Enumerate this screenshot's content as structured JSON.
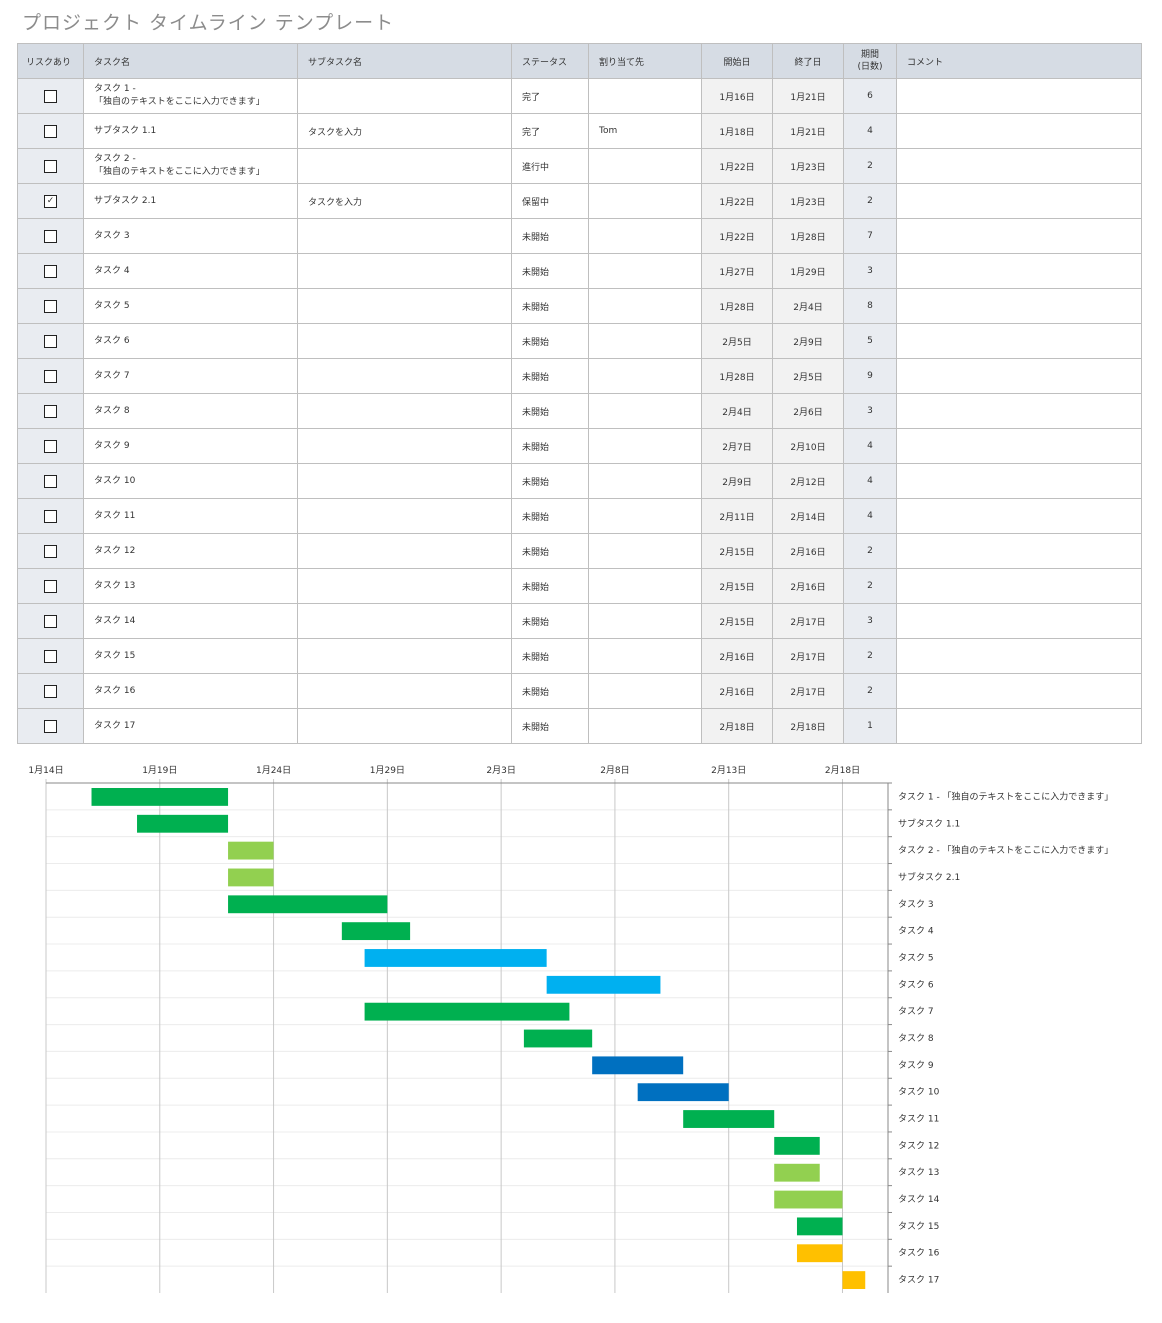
{
  "title": "プロジェクト タイムライン テンプレート",
  "table": {
    "headers": [
      "リスクあり",
      "タスク名",
      "サブタスク名",
      "ステータス",
      "割り当て先",
      "開始日",
      "終了日",
      "期間\n(日数)",
      "コメント"
    ],
    "rows": [
      {
        "risk": false,
        "task": "タスク 1 -\n「独自のテキストをここに入力できます」",
        "subtask": "",
        "status": "完了",
        "assignee": "",
        "start": "1月16日",
        "end": "1月21日",
        "duration": "6",
        "comment": ""
      },
      {
        "risk": false,
        "task": "サブタスク 1.1",
        "subtask": "タスクを入力",
        "status": "完了",
        "assignee": "Tom",
        "start": "1月18日",
        "end": "1月21日",
        "duration": "4",
        "comment": ""
      },
      {
        "risk": false,
        "task": "タスク 2 -\n「独自のテキストをここに入力できます」",
        "subtask": "",
        "status": "進行中",
        "assignee": "",
        "start": "1月22日",
        "end": "1月23日",
        "duration": "2",
        "comment": ""
      },
      {
        "risk": true,
        "task": "サブタスク 2.1",
        "subtask": "タスクを入力",
        "status": "保留中",
        "assignee": "",
        "start": "1月22日",
        "end": "1月23日",
        "duration": "2",
        "comment": ""
      },
      {
        "risk": false,
        "task": "タスク 3",
        "subtask": "",
        "status": "未開始",
        "assignee": "",
        "start": "1月22日",
        "end": "1月28日",
        "duration": "7",
        "comment": ""
      },
      {
        "risk": false,
        "task": "タスク 4",
        "subtask": "",
        "status": "未開始",
        "assignee": "",
        "start": "1月27日",
        "end": "1月29日",
        "duration": "3",
        "comment": ""
      },
      {
        "risk": false,
        "task": "タスク 5",
        "subtask": "",
        "status": "未開始",
        "assignee": "",
        "start": "1月28日",
        "end": "2月4日",
        "duration": "8",
        "comment": ""
      },
      {
        "risk": false,
        "task": "タスク 6",
        "subtask": "",
        "status": "未開始",
        "assignee": "",
        "start": "2月5日",
        "end": "2月9日",
        "duration": "5",
        "comment": ""
      },
      {
        "risk": false,
        "task": "タスク 7",
        "subtask": "",
        "status": "未開始",
        "assignee": "",
        "start": "1月28日",
        "end": "2月5日",
        "duration": "9",
        "comment": ""
      },
      {
        "risk": false,
        "task": "タスク 8",
        "subtask": "",
        "status": "未開始",
        "assignee": "",
        "start": "2月4日",
        "end": "2月6日",
        "duration": "3",
        "comment": ""
      },
      {
        "risk": false,
        "task": "タスク 9",
        "subtask": "",
        "status": "未開始",
        "assignee": "",
        "start": "2月7日",
        "end": "2月10日",
        "duration": "4",
        "comment": ""
      },
      {
        "risk": false,
        "task": "タスク 10",
        "subtask": "",
        "status": "未開始",
        "assignee": "",
        "start": "2月9日",
        "end": "2月12日",
        "duration": "4",
        "comment": ""
      },
      {
        "risk": false,
        "task": "タスク 11",
        "subtask": "",
        "status": "未開始",
        "assignee": "",
        "start": "2月11日",
        "end": "2月14日",
        "duration": "4",
        "comment": ""
      },
      {
        "risk": false,
        "task": "タスク 12",
        "subtask": "",
        "status": "未開始",
        "assignee": "",
        "start": "2月15日",
        "end": "2月16日",
        "duration": "2",
        "comment": ""
      },
      {
        "risk": false,
        "task": "タスク 13",
        "subtask": "",
        "status": "未開始",
        "assignee": "",
        "start": "2月15日",
        "end": "2月16日",
        "duration": "2",
        "comment": ""
      },
      {
        "risk": false,
        "task": "タスク 14",
        "subtask": "",
        "status": "未開始",
        "assignee": "",
        "start": "2月15日",
        "end": "2月17日",
        "duration": "3",
        "comment": ""
      },
      {
        "risk": false,
        "task": "タスク 15",
        "subtask": "",
        "status": "未開始",
        "assignee": "",
        "start": "2月16日",
        "end": "2月17日",
        "duration": "2",
        "comment": ""
      },
      {
        "risk": false,
        "task": "タスク 16",
        "subtask": "",
        "status": "未開始",
        "assignee": "",
        "start": "2月16日",
        "end": "2月17日",
        "duration": "2",
        "comment": ""
      },
      {
        "risk": false,
        "task": "タスク 17",
        "subtask": "",
        "status": "未開始",
        "assignee": "",
        "start": "2月18日",
        "end": "2月18日",
        "duration": "1",
        "comment": ""
      }
    ]
  },
  "chart_data": {
    "type": "bar",
    "orientation": "horizontal-gantt",
    "x_ticks": [
      "1月14日",
      "1月19日",
      "1月24日",
      "1月29日",
      "2月3日",
      "2月8日",
      "2月13日",
      "2月18日"
    ],
    "xlim": [
      "1月14日",
      "2月20日"
    ],
    "grid": true,
    "colors": {
      "complete": "#00b050",
      "in_progress": "#92d050",
      "not_started_a": "#00b0f0",
      "not_started_b": "#0070c0",
      "not_started_c": "#ffc000"
    },
    "tasks": [
      {
        "label": "タスク 1 - 「独自のテキストをここに入力できます」",
        "start": "1月16日",
        "end": "1月21日",
        "color": "#00b050"
      },
      {
        "label": "サブタスク 1.1",
        "start": "1月18日",
        "end": "1月21日",
        "color": "#00b050"
      },
      {
        "label": "タスク 2 - 「独自のテキストをここに入力できます」",
        "start": "1月22日",
        "end": "1月23日",
        "color": "#92d050"
      },
      {
        "label": "サブタスク 2.1",
        "start": "1月22日",
        "end": "1月23日",
        "color": "#92d050"
      },
      {
        "label": "タスク 3",
        "start": "1月22日",
        "end": "1月28日",
        "color": "#00b050"
      },
      {
        "label": "タスク 4",
        "start": "1月27日",
        "end": "1月29日",
        "color": "#00b050"
      },
      {
        "label": "タスク 5",
        "start": "1月28日",
        "end": "2月4日",
        "color": "#00b0f0"
      },
      {
        "label": "タスク 6",
        "start": "2月5日",
        "end": "2月9日",
        "color": "#00b0f0"
      },
      {
        "label": "タスク 7",
        "start": "1月28日",
        "end": "2月5日",
        "color": "#00b050"
      },
      {
        "label": "タスク 8",
        "start": "2月4日",
        "end": "2月6日",
        "color": "#00b050"
      },
      {
        "label": "タスク 9",
        "start": "2月7日",
        "end": "2月10日",
        "color": "#0070c0"
      },
      {
        "label": "タスク 10",
        "start": "2月9日",
        "end": "2月12日",
        "color": "#0070c0"
      },
      {
        "label": "タスク 11",
        "start": "2月11日",
        "end": "2月14日",
        "color": "#00b050"
      },
      {
        "label": "タスク 12",
        "start": "2月15日",
        "end": "2月16日",
        "color": "#00b050"
      },
      {
        "label": "タスク 13",
        "start": "2月15日",
        "end": "2月16日",
        "color": "#92d050"
      },
      {
        "label": "タスク 14",
        "start": "2月15日",
        "end": "2月17日",
        "color": "#92d050"
      },
      {
        "label": "タスク 15",
        "start": "2月16日",
        "end": "2月17日",
        "color": "#00b050"
      },
      {
        "label": "タスク 16",
        "start": "2月16日",
        "end": "2月17日",
        "color": "#ffc000"
      },
      {
        "label": "タスク 17",
        "start": "2月18日",
        "end": "2月18日",
        "color": "#ffc000"
      }
    ]
  }
}
